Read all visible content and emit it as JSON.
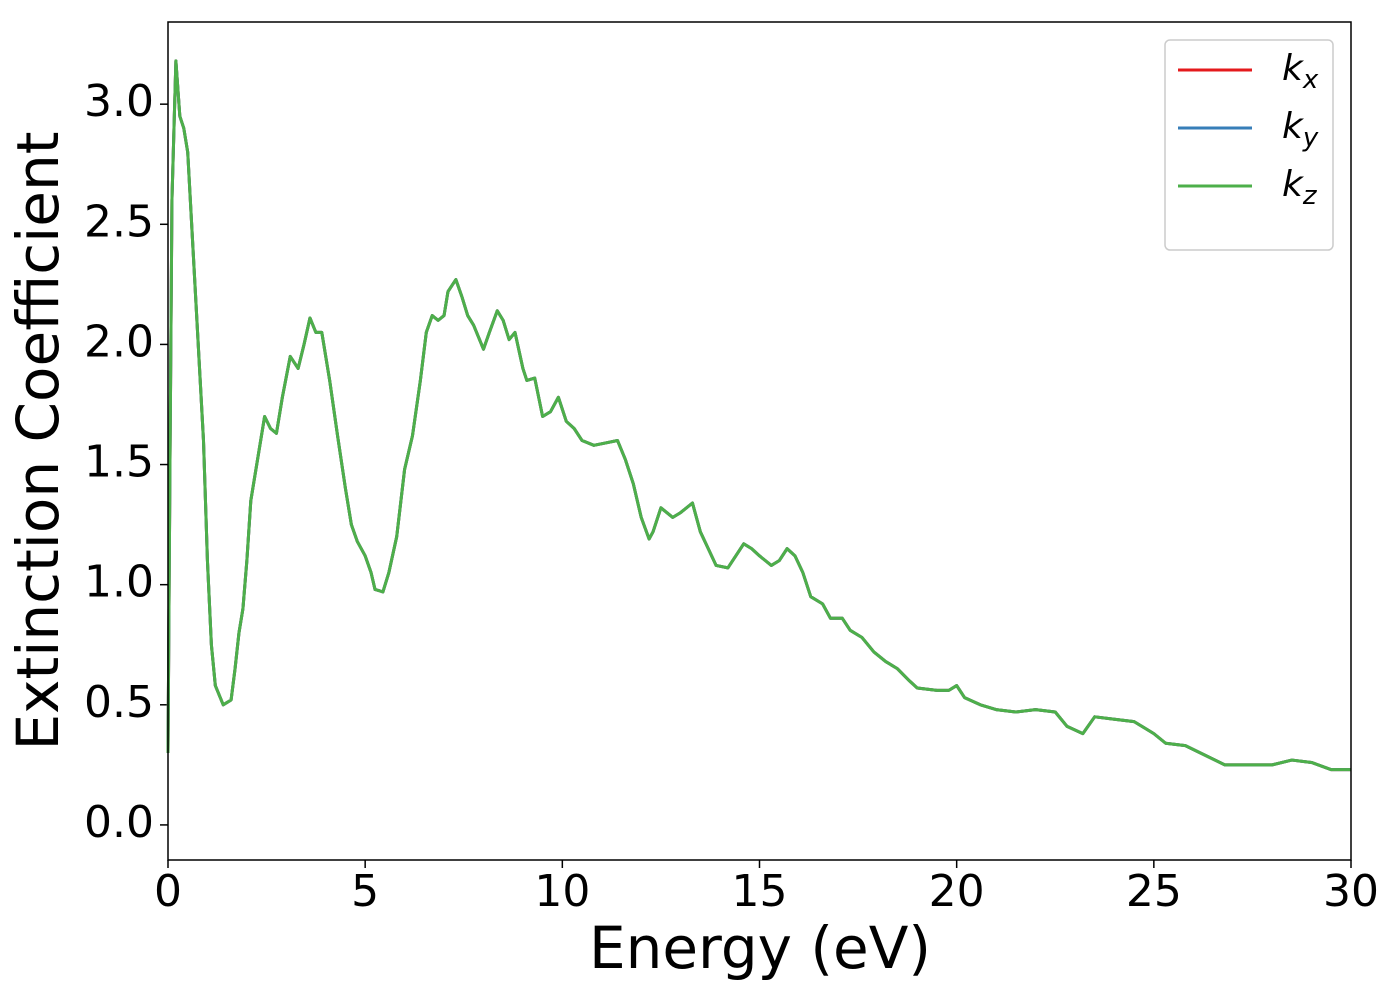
{
  "chart_data": {
    "type": "line",
    "xlabel": "Energy (eV)",
    "ylabel": "Extinction Coefficient",
    "x": [
      0,
      0.05,
      0.1,
      0.2,
      0.3,
      0.4,
      0.5,
      0.7,
      0.9,
      1.0,
      1.1,
      1.2,
      1.4,
      1.6,
      1.7,
      1.8,
      1.9,
      2.0,
      2.1,
      2.3,
      2.45,
      2.6,
      2.75,
      2.9,
      3.1,
      3.3,
      3.45,
      3.6,
      3.75,
      3.9,
      4.1,
      4.3,
      4.5,
      4.65,
      4.8,
      5.0,
      5.15,
      5.25,
      5.45,
      5.6,
      5.8,
      6.0,
      6.2,
      6.4,
      6.55,
      6.7,
      6.85,
      7.0,
      7.1,
      7.3,
      7.45,
      7.6,
      7.75,
      8.0,
      8.15,
      8.35,
      8.5,
      8.65,
      8.8,
      9.0,
      9.1,
      9.3,
      9.5,
      9.7,
      9.9,
      10.1,
      10.3,
      10.5,
      10.8,
      11.1,
      11.4,
      11.6,
      11.8,
      12.0,
      12.2,
      12.3,
      12.5,
      12.8,
      13.0,
      13.3,
      13.5,
      13.7,
      13.9,
      14.2,
      14.6,
      14.8,
      15.0,
      15.3,
      15.5,
      15.7,
      15.9,
      16.1,
      16.3,
      16.6,
      16.8,
      17.1,
      17.3,
      17.6,
      17.9,
      18.2,
      18.5,
      18.8,
      19.0,
      19.5,
      19.8,
      20.0,
      20.2,
      20.6,
      21.0,
      21.5,
      22.0,
      22.5,
      22.8,
      23.2,
      23.5,
      24.0,
      24.5,
      25.0,
      25.3,
      25.8,
      26.3,
      26.8,
      27.2,
      27.6,
      28.0,
      28.5,
      29.0,
      29.5,
      30.0
    ],
    "series": [
      {
        "name": "kx",
        "color": "#e41a1c",
        "values": [
          0.3,
          1.5,
          2.6,
          3.18,
          2.95,
          2.9,
          2.8,
          2.2,
          1.6,
          1.1,
          0.75,
          0.58,
          0.5,
          0.52,
          0.65,
          0.8,
          0.9,
          1.1,
          1.35,
          1.55,
          1.7,
          1.65,
          1.63,
          1.78,
          1.95,
          1.9,
          2.0,
          2.11,
          2.05,
          2.05,
          1.85,
          1.62,
          1.4,
          1.25,
          1.18,
          1.12,
          1.05,
          0.98,
          0.97,
          1.05,
          1.2,
          1.48,
          1.62,
          1.85,
          2.05,
          2.12,
          2.1,
          2.12,
          2.22,
          2.27,
          2.2,
          2.12,
          2.08,
          1.98,
          2.05,
          2.14,
          2.1,
          2.02,
          2.05,
          1.9,
          1.85,
          1.86,
          1.7,
          1.72,
          1.78,
          1.68,
          1.65,
          1.6,
          1.58,
          1.59,
          1.6,
          1.52,
          1.42,
          1.28,
          1.19,
          1.22,
          1.32,
          1.28,
          1.3,
          1.34,
          1.22,
          1.15,
          1.08,
          1.07,
          1.17,
          1.15,
          1.12,
          1.08,
          1.1,
          1.15,
          1.12,
          1.05,
          0.95,
          0.92,
          0.86,
          0.86,
          0.81,
          0.78,
          0.72,
          0.68,
          0.65,
          0.6,
          0.57,
          0.56,
          0.56,
          0.58,
          0.53,
          0.5,
          0.48,
          0.47,
          0.48,
          0.47,
          0.41,
          0.38,
          0.45,
          0.44,
          0.43,
          0.38,
          0.34,
          0.33,
          0.29,
          0.25,
          0.25,
          0.25,
          0.25,
          0.27,
          0.26,
          0.23,
          0.23
        ]
      },
      {
        "name": "ky",
        "color": "#377eb8",
        "values": [
          0.3,
          1.5,
          2.6,
          3.18,
          2.95,
          2.9,
          2.8,
          2.2,
          1.6,
          1.1,
          0.75,
          0.58,
          0.5,
          0.52,
          0.65,
          0.8,
          0.9,
          1.1,
          1.35,
          1.55,
          1.7,
          1.65,
          1.63,
          1.78,
          1.95,
          1.9,
          2.0,
          2.11,
          2.05,
          2.05,
          1.85,
          1.62,
          1.4,
          1.25,
          1.18,
          1.12,
          1.05,
          0.98,
          0.97,
          1.05,
          1.2,
          1.48,
          1.62,
          1.85,
          2.05,
          2.12,
          2.1,
          2.12,
          2.22,
          2.27,
          2.2,
          2.12,
          2.08,
          1.98,
          2.05,
          2.14,
          2.1,
          2.02,
          2.05,
          1.9,
          1.85,
          1.86,
          1.7,
          1.72,
          1.78,
          1.68,
          1.65,
          1.6,
          1.58,
          1.59,
          1.6,
          1.52,
          1.42,
          1.28,
          1.19,
          1.22,
          1.32,
          1.28,
          1.3,
          1.34,
          1.22,
          1.15,
          1.08,
          1.07,
          1.17,
          1.15,
          1.12,
          1.08,
          1.1,
          1.15,
          1.12,
          1.05,
          0.95,
          0.92,
          0.86,
          0.86,
          0.81,
          0.78,
          0.72,
          0.68,
          0.65,
          0.6,
          0.57,
          0.56,
          0.56,
          0.58,
          0.53,
          0.5,
          0.48,
          0.47,
          0.48,
          0.47,
          0.41,
          0.38,
          0.45,
          0.44,
          0.43,
          0.38,
          0.34,
          0.33,
          0.29,
          0.25,
          0.25,
          0.25,
          0.25,
          0.27,
          0.26,
          0.23,
          0.23
        ]
      },
      {
        "name": "kz",
        "color": "#4daf4a",
        "values": [
          0.3,
          1.5,
          2.6,
          3.18,
          2.95,
          2.9,
          2.8,
          2.2,
          1.6,
          1.1,
          0.75,
          0.58,
          0.5,
          0.52,
          0.65,
          0.8,
          0.9,
          1.1,
          1.35,
          1.55,
          1.7,
          1.65,
          1.63,
          1.78,
          1.95,
          1.9,
          2.0,
          2.11,
          2.05,
          2.05,
          1.85,
          1.62,
          1.4,
          1.25,
          1.18,
          1.12,
          1.05,
          0.98,
          0.97,
          1.05,
          1.2,
          1.48,
          1.62,
          1.85,
          2.05,
          2.12,
          2.1,
          2.12,
          2.22,
          2.27,
          2.2,
          2.12,
          2.08,
          1.98,
          2.05,
          2.14,
          2.1,
          2.02,
          2.05,
          1.9,
          1.85,
          1.86,
          1.7,
          1.72,
          1.78,
          1.68,
          1.65,
          1.6,
          1.58,
          1.59,
          1.6,
          1.52,
          1.42,
          1.28,
          1.19,
          1.22,
          1.32,
          1.28,
          1.3,
          1.34,
          1.22,
          1.15,
          1.08,
          1.07,
          1.17,
          1.15,
          1.12,
          1.08,
          1.1,
          1.15,
          1.12,
          1.05,
          0.95,
          0.92,
          0.86,
          0.86,
          0.81,
          0.78,
          0.72,
          0.68,
          0.65,
          0.6,
          0.57,
          0.56,
          0.56,
          0.58,
          0.53,
          0.5,
          0.48,
          0.47,
          0.48,
          0.47,
          0.41,
          0.38,
          0.45,
          0.44,
          0.43,
          0.38,
          0.34,
          0.33,
          0.29,
          0.25,
          0.25,
          0.25,
          0.25,
          0.27,
          0.26,
          0.23,
          0.23
        ]
      }
    ],
    "xlim": [
      0,
      30
    ],
    "xticks": [
      0,
      5,
      10,
      15,
      20,
      25,
      30
    ],
    "ylim": [
      -0.146,
      3.342
    ],
    "yticks": [
      {
        "value": 0,
        "label": "0.0"
      },
      0.5,
      {
        "value": 1,
        "label": "1.0"
      },
      1.5,
      {
        "value": 2,
        "label": "2.0"
      },
      2.5,
      {
        "value": 3,
        "label": "3.0"
      }
    ],
    "legend": "upper right",
    "grid": false
  }
}
